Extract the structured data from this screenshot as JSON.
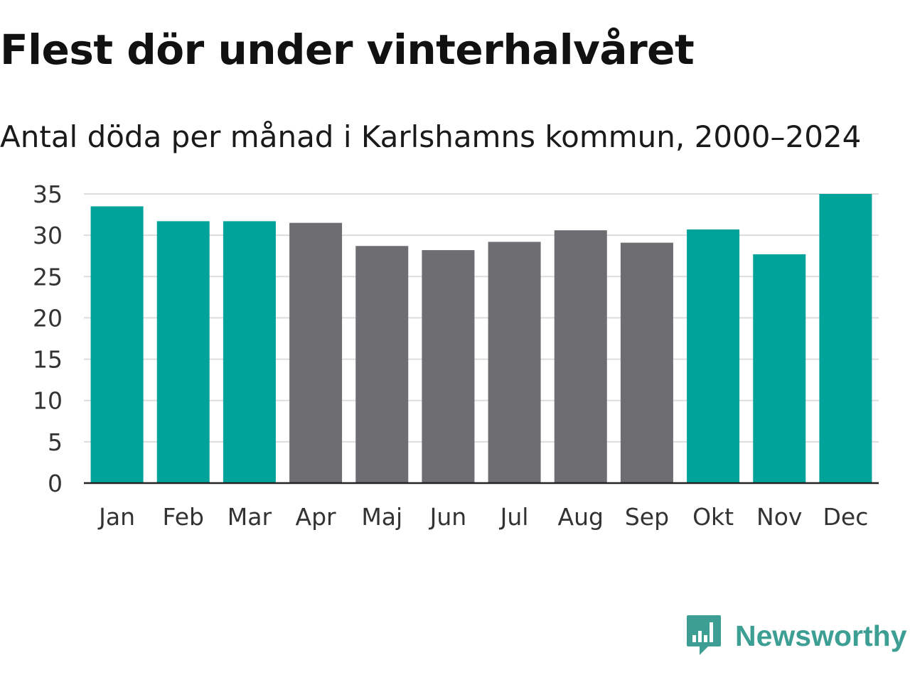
{
  "title": "Flest dör under vinterhalvåret",
  "subtitle": "Antal döda per månad i Karlshamns kommun, 2000–2024",
  "brand": {
    "name": "Newsworthy",
    "icon": "newsworthy-logo-icon",
    "color": "#3d9f93"
  },
  "colors": {
    "winter": "#00a39a",
    "summer": "#6d6d72",
    "grid": "#dddddd",
    "axis": "#222222"
  },
  "chart_data": {
    "type": "bar",
    "title": "Flest dör under vinterhalvåret",
    "subtitle": "Antal döda per månad i Karlshamns kommun, 2000–2024",
    "xlabel": "",
    "ylabel": "",
    "ylim": [
      0,
      35
    ],
    "yticks": [
      0,
      5,
      10,
      15,
      20,
      25,
      30,
      35
    ],
    "grid": true,
    "categories": [
      "Jan",
      "Feb",
      "Mar",
      "Apr",
      "Maj",
      "Jun",
      "Jul",
      "Aug",
      "Sep",
      "Okt",
      "Nov",
      "Dec"
    ],
    "values": [
      33.5,
      31.7,
      31.7,
      31.5,
      28.7,
      28.2,
      29.2,
      30.6,
      29.1,
      30.7,
      27.7,
      35.0
    ],
    "groups": [
      "winter",
      "winter",
      "winter",
      "summer",
      "summer",
      "summer",
      "summer",
      "summer",
      "summer",
      "winter",
      "winter",
      "winter"
    ]
  }
}
